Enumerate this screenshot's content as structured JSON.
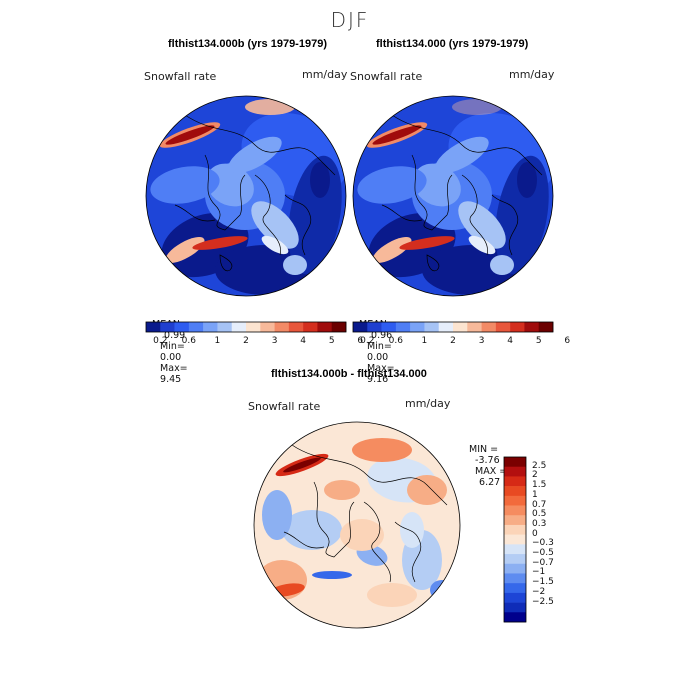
{
  "title": "DJF",
  "panels": [
    {
      "title": "flthist134.000b (yrs 1979-1979)",
      "field": "Snowfall rate",
      "units": "mm/day",
      "mean": "0.99",
      "min": "0.00",
      "max": "9.45"
    },
    {
      "title": "flthist134.000 (yrs 1979-1979)",
      "field": "Snowfall rate",
      "units": "mm/day",
      "mean": "0.96",
      "min": "0.00",
      "max": "9.16"
    }
  ],
  "stats_labels": {
    "mean": "MEAN=",
    "min": "Min=",
    "max": "Max="
  },
  "colorbar_top": {
    "labels": [
      "0.2",
      "0.6",
      "1",
      "2",
      "3",
      "4",
      "5",
      "6"
    ],
    "colors": [
      "#0a1a8c",
      "#1f3fcf",
      "#2e5cf0",
      "#4f7ef5",
      "#7aa3f7",
      "#a6c3f5",
      "#e6eefb",
      "#fce4d0",
      "#f7b99a",
      "#f28a66",
      "#e8573c",
      "#d42e1e",
      "#a00c0c",
      "#6b0000"
    ]
  },
  "diff_panel": {
    "title": "flthist134.000b - flthist134.000",
    "field": "Snowfall rate",
    "units": "mm/day",
    "min_label": "MIN =",
    "min": "-3.76",
    "max_label": "MAX =",
    "max": "6.27"
  },
  "colorbar_diff": {
    "labels": [
      "2.5",
      "2",
      "1.5",
      "1",
      "0.7",
      "0.5",
      "0.3",
      "0",
      "−0.3",
      "−0.5",
      "−0.7",
      "−1",
      "−1.5",
      "−2",
      "−2.5"
    ],
    "colors": [
      "#7a0000",
      "#b30f0f",
      "#d62a16",
      "#e84a22",
      "#f26a3c",
      "#f58c60",
      "#f7ad86",
      "#fbd4b8",
      "#fbe7d6",
      "#d6e4f7",
      "#b4cdf4",
      "#8cb0f2",
      "#5e8cf0",
      "#3568ea",
      "#1d45d6",
      "#0f2cb8",
      "#00008c"
    ]
  }
}
